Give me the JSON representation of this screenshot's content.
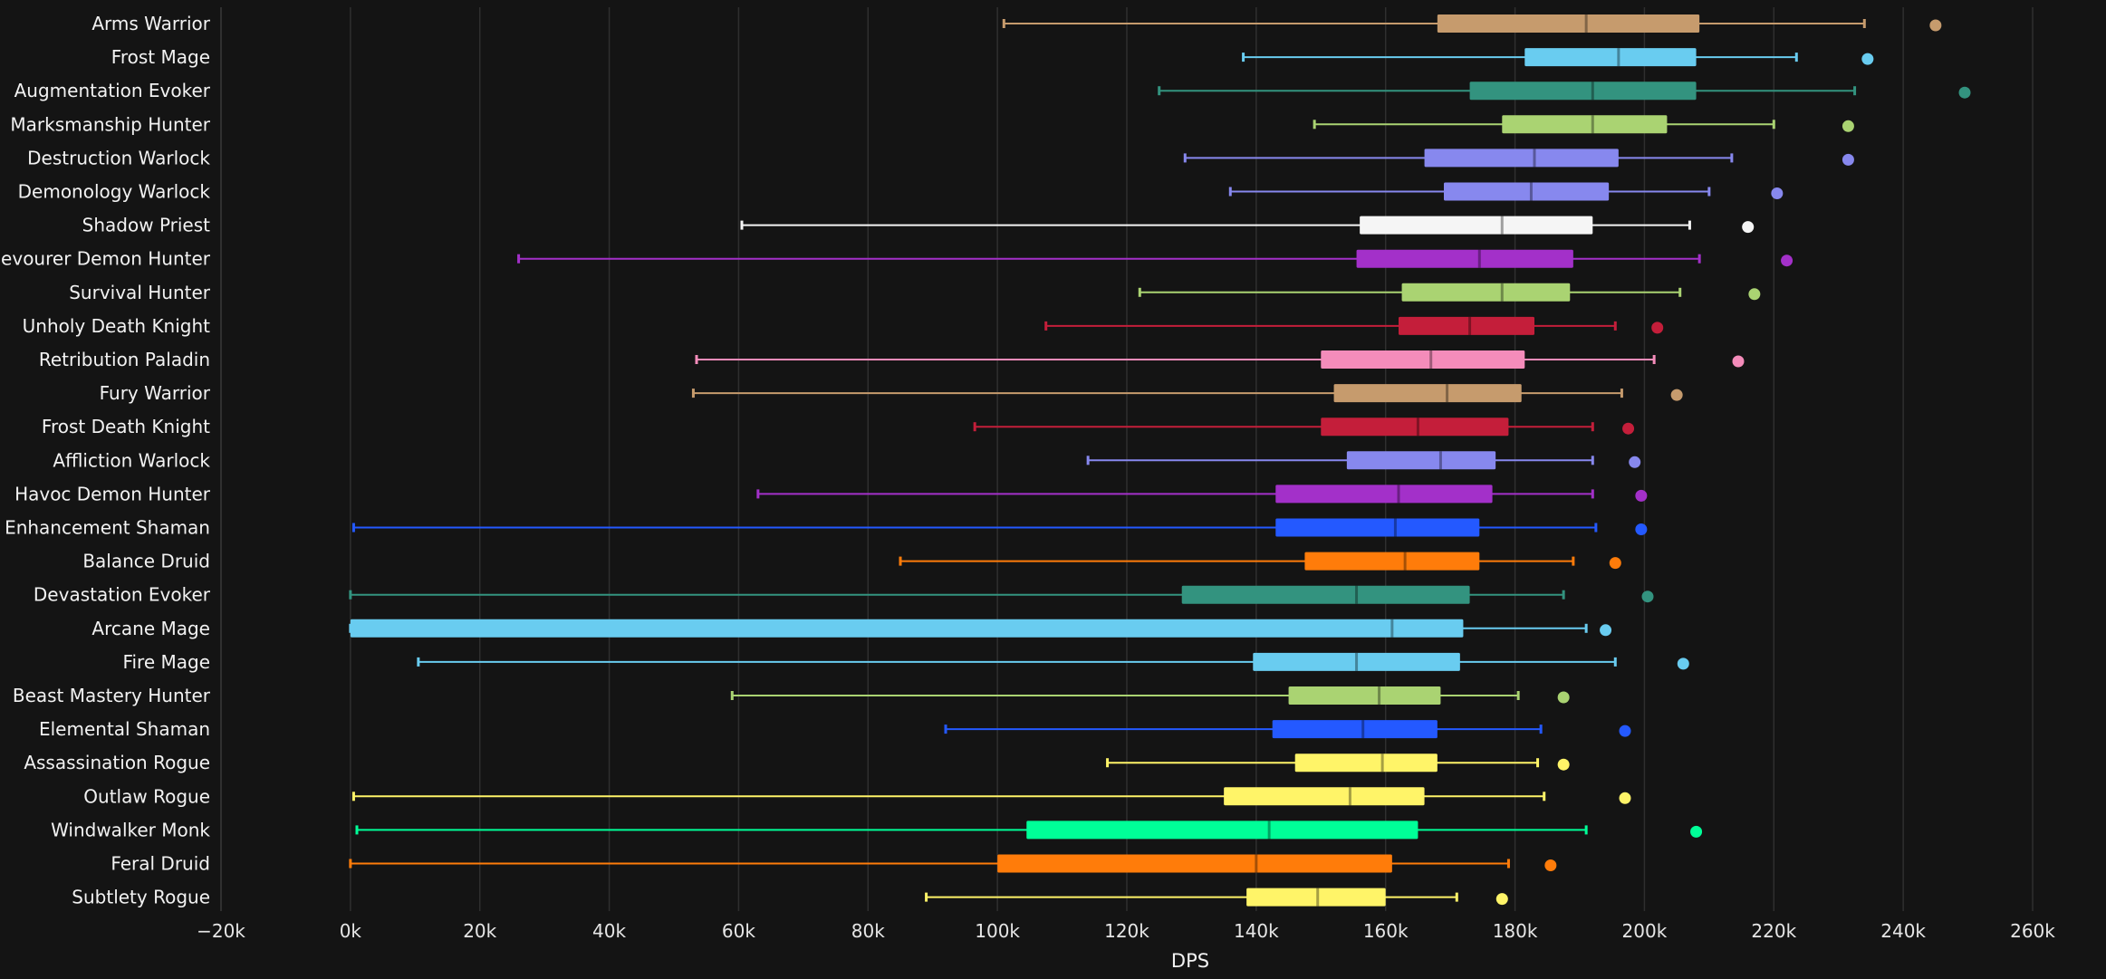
{
  "chart_data": {
    "type": "boxplot",
    "orientation": "horizontal",
    "xlabel": "DPS",
    "xlim": [
      -20000,
      260000
    ],
    "xticks": [
      -20000,
      0,
      20000,
      40000,
      60000,
      80000,
      100000,
      120000,
      140000,
      160000,
      180000,
      200000,
      220000,
      240000,
      260000
    ],
    "xtick_labels": [
      "−20k",
      "0k",
      "20k",
      "40k",
      "60k",
      "80k",
      "100k",
      "120k",
      "140k",
      "160k",
      "180k",
      "200k",
      "220k",
      "240k",
      "260k"
    ],
    "grid": true,
    "series": [
      {
        "name": "Arms Warrior",
        "color": "#C69B6D",
        "min": 101000,
        "q1": 168000,
        "median": 191000,
        "q3": 208500,
        "max": 234000,
        "outlier": 245000
      },
      {
        "name": "Frost Mage",
        "color": "#69CCF0",
        "min": 138000,
        "q1": 181500,
        "median": 196000,
        "q3": 208000,
        "max": 223500,
        "outlier": 234500
      },
      {
        "name": "Augmentation Evoker",
        "color": "#33937F",
        "min": 125000,
        "q1": 173000,
        "median": 192000,
        "q3": 208000,
        "max": 232500,
        "outlier": 249500
      },
      {
        "name": "Marksmanship Hunter",
        "color": "#AAD372",
        "min": 149000,
        "q1": 178000,
        "median": 192000,
        "q3": 203500,
        "max": 220000,
        "outlier": 231500
      },
      {
        "name": "Destruction Warlock",
        "color": "#8788EE",
        "min": 129000,
        "q1": 166000,
        "median": 183000,
        "q3": 196000,
        "max": 213500,
        "outlier": 231500
      },
      {
        "name": "Demonology Warlock",
        "color": "#8788EE",
        "min": 136000,
        "q1": 169000,
        "median": 182500,
        "q3": 194500,
        "max": 210000,
        "outlier": 220500
      },
      {
        "name": "Shadow Priest",
        "color": "#F5F5F5",
        "min": 60500,
        "q1": 156000,
        "median": 178000,
        "q3": 192000,
        "max": 207000,
        "outlier": 216000
      },
      {
        "name": "Devourer Demon Hunter",
        "color": "#A330C9",
        "min": 26000,
        "q1": 155500,
        "median": 174500,
        "q3": 189000,
        "max": 208500,
        "outlier": 222000
      },
      {
        "name": "Survival Hunter",
        "color": "#AAD372",
        "min": 122000,
        "q1": 162500,
        "median": 178000,
        "q3": 188500,
        "max": 205500,
        "outlier": 217000
      },
      {
        "name": "Unholy Death Knight",
        "color": "#C41E3A",
        "min": 107500,
        "q1": 162000,
        "median": 173000,
        "q3": 183000,
        "max": 195500,
        "outlier": 202000
      },
      {
        "name": "Retribution Paladin",
        "color": "#F48CBA",
        "min": 53500,
        "q1": 150000,
        "median": 167000,
        "q3": 181500,
        "max": 201500,
        "outlier": 214500
      },
      {
        "name": "Fury Warrior",
        "color": "#C69B6D",
        "min": 53000,
        "q1": 152000,
        "median": 169500,
        "q3": 181000,
        "max": 196500,
        "outlier": 205000
      },
      {
        "name": "Frost Death Knight",
        "color": "#C41E3A",
        "min": 96500,
        "q1": 150000,
        "median": 165000,
        "q3": 179000,
        "max": 192000,
        "outlier": 197500
      },
      {
        "name": "Affliction Warlock",
        "color": "#8788EE",
        "min": 114000,
        "q1": 154000,
        "median": 168500,
        "q3": 177000,
        "max": 192000,
        "outlier": 198500
      },
      {
        "name": "Havoc Demon Hunter",
        "color": "#A330C9",
        "min": 63000,
        "q1": 143000,
        "median": 162000,
        "q3": 176500,
        "max": 192000,
        "outlier": 199500
      },
      {
        "name": "Enhancement Shaman",
        "color": "#2459FF",
        "min": 500,
        "q1": 143000,
        "median": 161500,
        "q3": 174500,
        "max": 192500,
        "outlier": 199500
      },
      {
        "name": "Balance Druid",
        "color": "#FF7C0A",
        "min": 85000,
        "q1": 147500,
        "median": 163000,
        "q3": 174500,
        "max": 189000,
        "outlier": 195500
      },
      {
        "name": "Devastation Evoker",
        "color": "#33937F",
        "min": 0,
        "q1": 128500,
        "median": 155500,
        "q3": 173000,
        "max": 187500,
        "outlier": 200500
      },
      {
        "name": "Arcane Mage",
        "color": "#69CCF0",
        "min": 0,
        "q1": 0,
        "median": 161000,
        "q3": 172000,
        "max": 191000,
        "outlier": 194000
      },
      {
        "name": "Fire Mage",
        "color": "#69CCF0",
        "min": 10500,
        "q1": 139500,
        "median": 155500,
        "q3": 171500,
        "max": 195500,
        "outlier": 206000
      },
      {
        "name": "Beast Mastery Hunter",
        "color": "#AAD372",
        "min": 59000,
        "q1": 145000,
        "median": 159000,
        "q3": 168500,
        "max": 180500,
        "outlier": 187500
      },
      {
        "name": "Elemental Shaman",
        "color": "#2459FF",
        "min": 92000,
        "q1": 142500,
        "median": 156500,
        "q3": 168000,
        "max": 184000,
        "outlier": 197000
      },
      {
        "name": "Assassination Rogue",
        "color": "#FFF468",
        "min": 117000,
        "q1": 146000,
        "median": 159500,
        "q3": 168000,
        "max": 183500,
        "outlier": 187500
      },
      {
        "name": "Outlaw Rogue",
        "color": "#FFF468",
        "min": 500,
        "q1": 135000,
        "median": 154500,
        "q3": 166000,
        "max": 184500,
        "outlier": 197000
      },
      {
        "name": "Windwalker Monk",
        "color": "#00FF98",
        "min": 1000,
        "q1": 104500,
        "median": 142000,
        "q3": 165000,
        "max": 191000,
        "outlier": 208000
      },
      {
        "name": "Feral Druid",
        "color": "#FF7C0A",
        "min": 0,
        "q1": 100000,
        "median": 140000,
        "q3": 161000,
        "max": 179000,
        "outlier": 185500
      },
      {
        "name": "Subtlety Rogue",
        "color": "#FFF468",
        "min": 89000,
        "q1": 138500,
        "median": 149500,
        "q3": 160000,
        "max": 171000,
        "outlier": 178000
      }
    ]
  }
}
